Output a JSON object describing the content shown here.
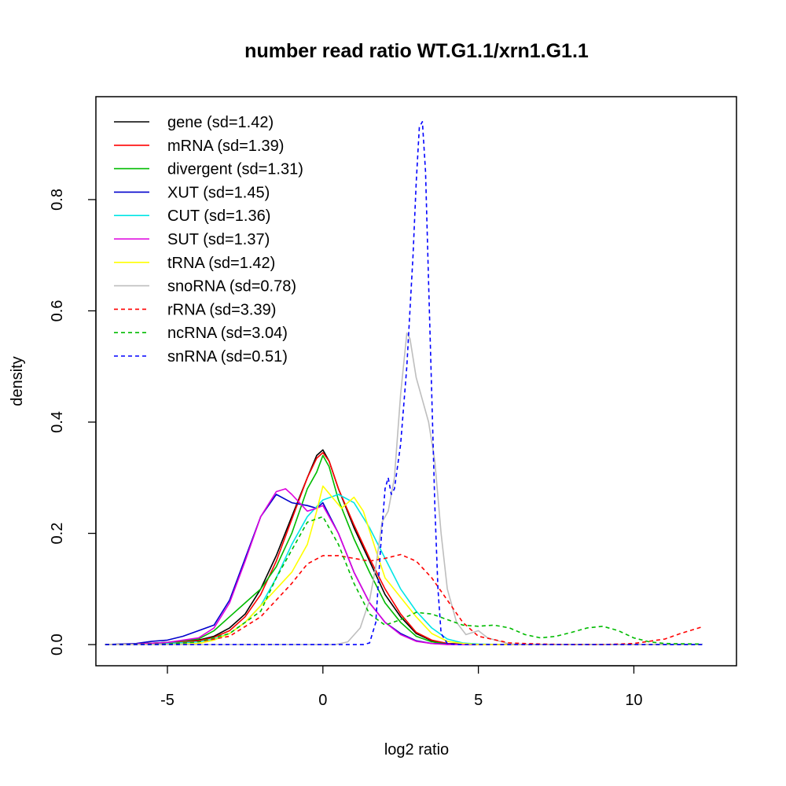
{
  "chart_data": {
    "type": "line",
    "title": "number read ratio WT.G1.1/xrn1.G1.1",
    "xlabel": "log2 ratio",
    "ylabel": "density",
    "xlim": [
      -7.3,
      13.3
    ],
    "ylim": [
      -0.038,
      0.985
    ],
    "x_ticks": [
      -5,
      0,
      5,
      10
    ],
    "x_tick_labels": [
      "-5",
      "0",
      "5",
      "10"
    ],
    "y_ticks": [
      0.0,
      0.2,
      0.4,
      0.6,
      0.8
    ],
    "y_tick_labels": [
      "0.0",
      "0.2",
      "0.4",
      "0.6",
      "0.8"
    ],
    "legend_position": "top-left",
    "series": [
      {
        "name": "gene",
        "label": "gene (sd=1.42)",
        "color": "#000000",
        "dash": "solid",
        "points": [
          [
            -7,
            0
          ],
          [
            -6,
            0.001
          ],
          [
            -5,
            0.004
          ],
          [
            -4,
            0.008
          ],
          [
            -3.5,
            0.015
          ],
          [
            -3,
            0.03
          ],
          [
            -2.5,
            0.055
          ],
          [
            -2,
            0.1
          ],
          [
            -1.5,
            0.16
          ],
          [
            -1,
            0.23
          ],
          [
            -0.5,
            0.3
          ],
          [
            -0.2,
            0.34
          ],
          [
            0,
            0.35
          ],
          [
            0.2,
            0.33
          ],
          [
            0.5,
            0.28
          ],
          [
            1,
            0.21
          ],
          [
            1.5,
            0.15
          ],
          [
            2,
            0.09
          ],
          [
            2.5,
            0.05
          ],
          [
            3,
            0.02
          ],
          [
            3.5,
            0.007
          ],
          [
            4,
            0.002
          ],
          [
            5,
            0
          ],
          [
            12.2,
            0
          ]
        ]
      },
      {
        "name": "mRNA",
        "label": "mRNA (sd=1.39)",
        "color": "#ff0000",
        "dash": "solid",
        "points": [
          [
            -7,
            0
          ],
          [
            -6,
            0.001
          ],
          [
            -5,
            0.003
          ],
          [
            -4,
            0.007
          ],
          [
            -3.5,
            0.013
          ],
          [
            -3,
            0.025
          ],
          [
            -2.5,
            0.05
          ],
          [
            -2,
            0.09
          ],
          [
            -1.5,
            0.15
          ],
          [
            -1,
            0.225
          ],
          [
            -0.5,
            0.3
          ],
          [
            -0.2,
            0.335
          ],
          [
            0,
            0.345
          ],
          [
            0.2,
            0.33
          ],
          [
            0.5,
            0.28
          ],
          [
            1,
            0.215
          ],
          [
            1.5,
            0.155
          ],
          [
            2,
            0.1
          ],
          [
            2.5,
            0.055
          ],
          [
            3,
            0.022
          ],
          [
            3.5,
            0.008
          ],
          [
            4,
            0.002
          ],
          [
            5,
            0
          ],
          [
            12.2,
            0
          ]
        ]
      },
      {
        "name": "divergent",
        "label": "divergent (sd=1.31)",
        "color": "#00bb00",
        "dash": "solid",
        "points": [
          [
            -7,
            0
          ],
          [
            -6,
            0.001
          ],
          [
            -5,
            0.004
          ],
          [
            -4,
            0.01
          ],
          [
            -3.5,
            0.025
          ],
          [
            -3,
            0.05
          ],
          [
            -2.5,
            0.075
          ],
          [
            -2,
            0.1
          ],
          [
            -1.5,
            0.14
          ],
          [
            -1,
            0.2
          ],
          [
            -0.5,
            0.28
          ],
          [
            -0.2,
            0.31
          ],
          [
            0,
            0.34
          ],
          [
            0.2,
            0.32
          ],
          [
            0.5,
            0.26
          ],
          [
            1,
            0.19
          ],
          [
            1.5,
            0.13
          ],
          [
            2,
            0.075
          ],
          [
            2.5,
            0.04
          ],
          [
            3,
            0.015
          ],
          [
            3.5,
            0.005
          ],
          [
            4,
            0.001
          ],
          [
            5,
            0
          ],
          [
            12.2,
            0
          ]
        ]
      },
      {
        "name": "XUT",
        "label": "XUT (sd=1.45)",
        "color": "#0000cc",
        "dash": "solid",
        "points": [
          [
            -7,
            0
          ],
          [
            -6,
            0.002
          ],
          [
            -5.5,
            0.006
          ],
          [
            -5,
            0.008
          ],
          [
            -4.5,
            0.015
          ],
          [
            -4,
            0.025
          ],
          [
            -3.5,
            0.035
          ],
          [
            -3,
            0.08
          ],
          [
            -2.5,
            0.155
          ],
          [
            -2,
            0.23
          ],
          [
            -1.5,
            0.27
          ],
          [
            -1,
            0.255
          ],
          [
            -0.5,
            0.25
          ],
          [
            -0.2,
            0.245
          ],
          [
            0,
            0.255
          ],
          [
            0.5,
            0.2
          ],
          [
            1,
            0.13
          ],
          [
            1.5,
            0.075
          ],
          [
            2,
            0.04
          ],
          [
            2.5,
            0.02
          ],
          [
            3,
            0.007
          ],
          [
            3.5,
            0.002
          ],
          [
            4,
            0.001
          ],
          [
            5,
            0
          ],
          [
            12.2,
            0
          ]
        ]
      },
      {
        "name": "CUT",
        "label": "CUT (sd=1.36)",
        "color": "#00e5e5",
        "dash": "solid",
        "points": [
          [
            -7,
            0
          ],
          [
            -6,
            0.001
          ],
          [
            -5,
            0.002
          ],
          [
            -4,
            0.005
          ],
          [
            -3.5,
            0.01
          ],
          [
            -3,
            0.02
          ],
          [
            -2.5,
            0.04
          ],
          [
            -2,
            0.07
          ],
          [
            -1.5,
            0.12
          ],
          [
            -1,
            0.18
          ],
          [
            -0.5,
            0.23
          ],
          [
            0,
            0.26
          ],
          [
            0.5,
            0.27
          ],
          [
            1,
            0.255
          ],
          [
            1.5,
            0.21
          ],
          [
            2,
            0.155
          ],
          [
            2.5,
            0.1
          ],
          [
            3,
            0.06
          ],
          [
            3.5,
            0.03
          ],
          [
            4,
            0.01
          ],
          [
            4.5,
            0.003
          ],
          [
            5,
            0.001
          ],
          [
            6,
            0
          ],
          [
            12.2,
            0
          ]
        ]
      },
      {
        "name": "SUT",
        "label": "SUT (sd=1.37)",
        "color": "#dd00dd",
        "dash": "solid",
        "points": [
          [
            -7,
            0
          ],
          [
            -6,
            0.001
          ],
          [
            -5,
            0.004
          ],
          [
            -4,
            0.012
          ],
          [
            -3.5,
            0.03
          ],
          [
            -3,
            0.075
          ],
          [
            -2.5,
            0.15
          ],
          [
            -2,
            0.23
          ],
          [
            -1.5,
            0.275
          ],
          [
            -1.2,
            0.28
          ],
          [
            -1,
            0.27
          ],
          [
            -0.5,
            0.24
          ],
          [
            -0.2,
            0.245
          ],
          [
            0,
            0.25
          ],
          [
            0.5,
            0.2
          ],
          [
            1,
            0.13
          ],
          [
            1.5,
            0.075
          ],
          [
            2,
            0.04
          ],
          [
            2.5,
            0.018
          ],
          [
            3,
            0.006
          ],
          [
            3.5,
            0.002
          ],
          [
            4,
            0
          ],
          [
            12.2,
            0
          ]
        ]
      },
      {
        "name": "tRNA",
        "label": "tRNA (sd=1.42)",
        "color": "#ffff00",
        "dash": "solid",
        "points": [
          [
            -7,
            0
          ],
          [
            -5,
            0
          ],
          [
            -4,
            0.002
          ],
          [
            -3.5,
            0.008
          ],
          [
            -3,
            0.02
          ],
          [
            -2.5,
            0.04
          ],
          [
            -2,
            0.07
          ],
          [
            -1.5,
            0.1
          ],
          [
            -1,
            0.13
          ],
          [
            -0.5,
            0.18
          ],
          [
            -0.2,
            0.24
          ],
          [
            0,
            0.285
          ],
          [
            0.3,
            0.265
          ],
          [
            0.6,
            0.245
          ],
          [
            1,
            0.265
          ],
          [
            1.3,
            0.24
          ],
          [
            1.7,
            0.17
          ],
          [
            2,
            0.12
          ],
          [
            2.5,
            0.085
          ],
          [
            3,
            0.05
          ],
          [
            3.5,
            0.02
          ],
          [
            4,
            0.006
          ],
          [
            4.5,
            0.002
          ],
          [
            5,
            0
          ],
          [
            12.2,
            0
          ]
        ]
      },
      {
        "name": "snoRNA",
        "label": "snoRNA (sd=0.78)",
        "color": "#bebebe",
        "dash": "solid",
        "points": [
          [
            -7,
            0
          ],
          [
            0.4,
            0
          ],
          [
            0.8,
            0.005
          ],
          [
            1.2,
            0.03
          ],
          [
            1.5,
            0.08
          ],
          [
            1.7,
            0.14
          ],
          [
            1.9,
            0.22
          ],
          [
            2.1,
            0.24
          ],
          [
            2.3,
            0.3
          ],
          [
            2.5,
            0.45
          ],
          [
            2.7,
            0.56
          ],
          [
            2.8,
            0.55
          ],
          [
            3.0,
            0.48
          ],
          [
            3.2,
            0.44
          ],
          [
            3.4,
            0.4
          ],
          [
            3.6,
            0.33
          ],
          [
            3.8,
            0.2
          ],
          [
            4.0,
            0.1
          ],
          [
            4.3,
            0.04
          ],
          [
            4.6,
            0.018
          ],
          [
            5,
            0.025
          ],
          [
            5.3,
            0.012
          ],
          [
            6,
            0.001
          ],
          [
            7,
            0
          ],
          [
            12.2,
            0
          ]
        ]
      },
      {
        "name": "rRNA",
        "label": "rRNA (sd=3.39)",
        "color": "#ff0000",
        "dash": "dashed",
        "points": [
          [
            -7,
            0
          ],
          [
            -5,
            0.001
          ],
          [
            -4,
            0.005
          ],
          [
            -3,
            0.015
          ],
          [
            -2,
            0.05
          ],
          [
            -1,
            0.11
          ],
          [
            -0.5,
            0.145
          ],
          [
            0,
            0.16
          ],
          [
            0.5,
            0.16
          ],
          [
            1,
            0.155
          ],
          [
            1.5,
            0.15
          ],
          [
            2,
            0.155
          ],
          [
            2.5,
            0.162
          ],
          [
            3,
            0.15
          ],
          [
            3.5,
            0.12
          ],
          [
            4,
            0.08
          ],
          [
            4.5,
            0.04
          ],
          [
            5,
            0.015
          ],
          [
            6,
            0.003
          ],
          [
            7,
            0.001
          ],
          [
            8,
            0
          ],
          [
            9,
            0
          ],
          [
            10,
            0.002
          ],
          [
            11,
            0.01
          ],
          [
            11.5,
            0.02
          ],
          [
            12.2,
            0.032
          ]
        ]
      },
      {
        "name": "ncRNA",
        "label": "ncRNA (sd=3.04)",
        "color": "#00bb00",
        "dash": "dashed",
        "points": [
          [
            -7,
            0
          ],
          [
            -5,
            0.001
          ],
          [
            -4,
            0.005
          ],
          [
            -3,
            0.02
          ],
          [
            -2,
            0.06
          ],
          [
            -1.5,
            0.12
          ],
          [
            -1,
            0.17
          ],
          [
            -0.5,
            0.22
          ],
          [
            0,
            0.23
          ],
          [
            0.5,
            0.18
          ],
          [
            1,
            0.11
          ],
          [
            1.5,
            0.055
          ],
          [
            2,
            0.035
          ],
          [
            2.5,
            0.045
          ],
          [
            3,
            0.058
          ],
          [
            3.5,
            0.055
          ],
          [
            4,
            0.045
          ],
          [
            4.5,
            0.035
          ],
          [
            5,
            0.033
          ],
          [
            5.5,
            0.035
          ],
          [
            6,
            0.03
          ],
          [
            6.5,
            0.018
          ],
          [
            7,
            0.012
          ],
          [
            7.5,
            0.015
          ],
          [
            8,
            0.022
          ],
          [
            8.5,
            0.03
          ],
          [
            9,
            0.033
          ],
          [
            9.5,
            0.025
          ],
          [
            10,
            0.012
          ],
          [
            10.5,
            0.005
          ],
          [
            11,
            0.002
          ],
          [
            12.2,
            0.001
          ]
        ]
      },
      {
        "name": "snRNA",
        "label": "snRNA (sd=0.51)",
        "color": "#0000ff",
        "dash": "dashed",
        "points": [
          [
            -7,
            0
          ],
          [
            1.3,
            0
          ],
          [
            1.5,
            0.003
          ],
          [
            1.7,
            0.04
          ],
          [
            1.85,
            0.17
          ],
          [
            2.0,
            0.28
          ],
          [
            2.1,
            0.3
          ],
          [
            2.2,
            0.27
          ],
          [
            2.3,
            0.28
          ],
          [
            2.5,
            0.36
          ],
          [
            2.7,
            0.5
          ],
          [
            2.9,
            0.7
          ],
          [
            3.0,
            0.83
          ],
          [
            3.1,
            0.93
          ],
          [
            3.2,
            0.94
          ],
          [
            3.3,
            0.85
          ],
          [
            3.4,
            0.65
          ],
          [
            3.5,
            0.45
          ],
          [
            3.6,
            0.25
          ],
          [
            3.7,
            0.1
          ],
          [
            3.8,
            0.02
          ],
          [
            4.0,
            0.002
          ],
          [
            4.3,
            0
          ],
          [
            12.2,
            0
          ]
        ]
      }
    ]
  }
}
